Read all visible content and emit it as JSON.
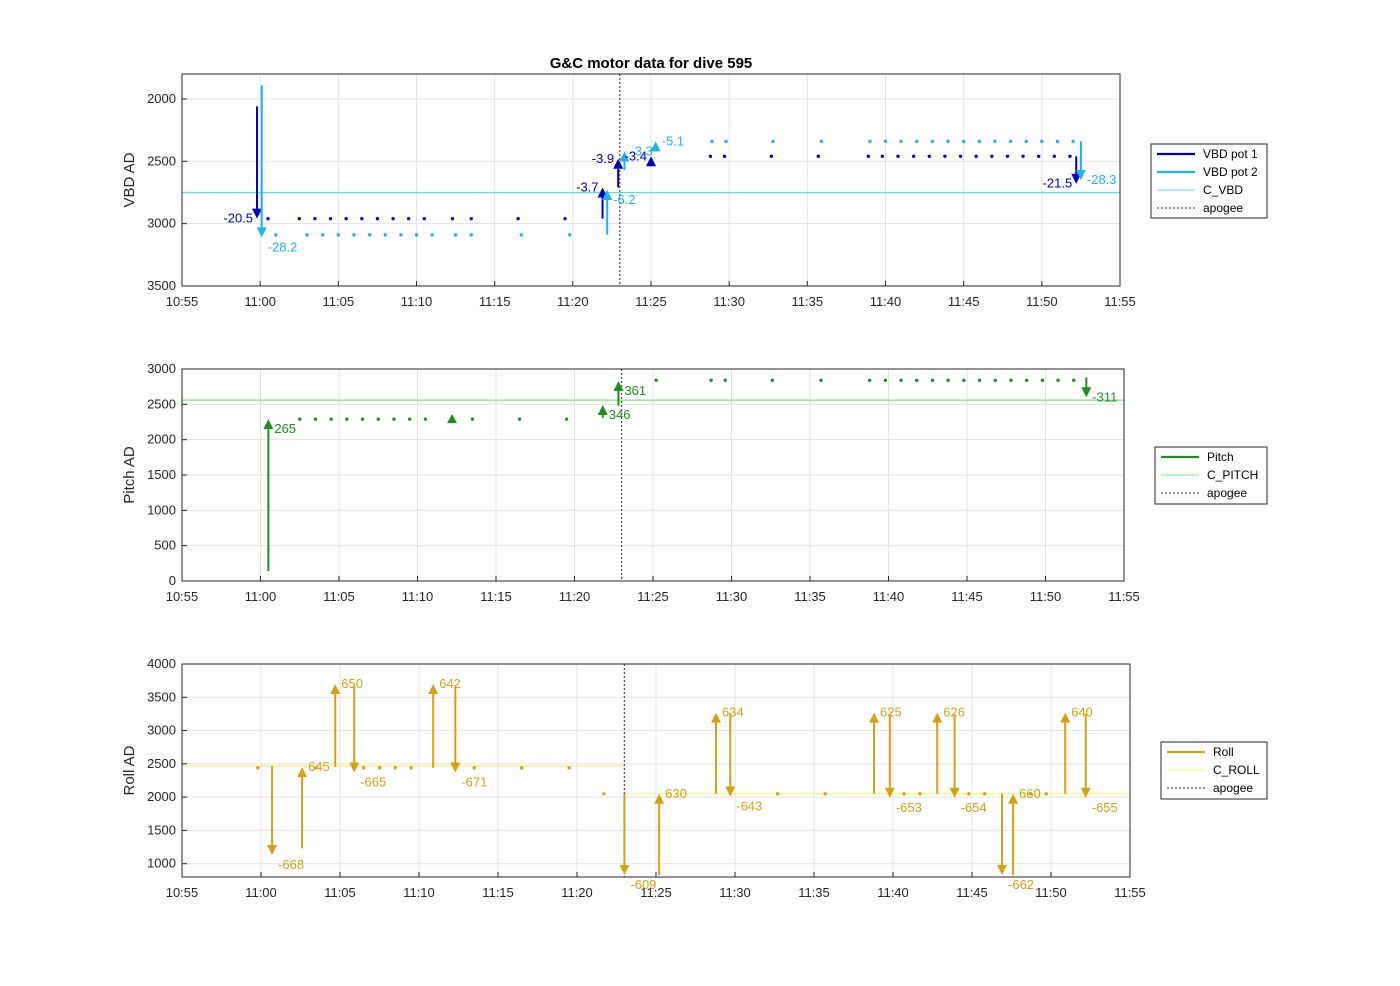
{
  "chart_data": {
    "type": "line",
    "title": "G&C motor data for dive 595",
    "xlim": [
      "10:55",
      "11:55"
    ],
    "x_ticks": [
      "10:55",
      "11:00",
      "11:05",
      "11:10",
      "11:15",
      "11:20",
      "11:25",
      "11:30",
      "11:35",
      "11:40",
      "11:45",
      "11:50",
      "11:55"
    ],
    "apogee": "11:23.0",
    "panels": [
      {
        "id": "vbd",
        "ylabel": "VBD AD",
        "ylim": [
          1800,
          3500
        ],
        "y_reversed": true,
        "y_ticks": [
          2000,
          2500,
          3000,
          3500
        ],
        "legend": [
          {
            "label": "VBD pot 1",
            "color": "#0000b3",
            "style": "solid-thick"
          },
          {
            "label": "VBD pot 2",
            "color": "#1fb4e8",
            "style": "solid-thick"
          },
          {
            "label": "C_VBD",
            "color": "#5fd8e6",
            "style": "solid-thin"
          },
          {
            "label": "apogee",
            "color": "#555555",
            "style": "dotted"
          }
        ],
        "hlines": [
          {
            "y": 2750,
            "color": "#5fd8e6"
          }
        ],
        "dot_series": [
          {
            "name": "VBD pot 1",
            "color": "#0000b3",
            "y": 2960,
            "x": [
              "11:00.5",
              "11:02.5",
              "11:03.5",
              "11:04.5",
              "11:05.5",
              "11:06.5",
              "11:07.5",
              "11:08.5",
              "11:09.5",
              "11:10.5",
              "11:12.3",
              "11:13.5",
              "11:16.5",
              "11:19.5"
            ]
          },
          {
            "name": "VBD pot 1",
            "color": "#0000b3",
            "y": 2460,
            "x": [
              "11:28.8",
              "11:29.7",
              "11:32.7",
              "11:35.7",
              "11:38.9",
              "11:39.8",
              "11:40.8",
              "11:41.8",
              "11:42.8",
              "11:43.8",
              "11:44.8",
              "11:45.8",
              "11:46.8",
              "11:47.8",
              "11:48.8",
              "11:49.8",
              "11:50.8",
              "11:51.8"
            ]
          },
          {
            "name": "VBD pot 2",
            "color": "#1fb4e8",
            "y": 3090,
            "x": [
              "11:01",
              "11:03",
              "11:04",
              "11:05",
              "11:06",
              "11:07",
              "11:08",
              "11:09",
              "11:10",
              "11:11",
              "11:12.5",
              "11:13.5",
              "11:16.7",
              "11:19.8"
            ]
          },
          {
            "name": "VBD pot 2",
            "color": "#1fb4e8",
            "y": 2340,
            "x": [
              "11:28.9",
              "11:29.8",
              "11:32.8",
              "11:35.9",
              "11:39.0",
              "11:40.0",
              "11:41.0",
              "11:42.0",
              "11:43.0",
              "11:44.0",
              "11:45.0",
              "11:46.0",
              "11:47.0",
              "11:48.0",
              "11:49.0",
              "11:50.0",
              "11:51.0",
              "11:52.0"
            ]
          }
        ],
        "arrows": [
          {
            "x": "10:59.8",
            "y0": 2060,
            "y1": 2960,
            "color": "#0000b3",
            "label": "-20.5",
            "label_side": "left"
          },
          {
            "x": "11:00.1",
            "y0": 1890,
            "y1": 3110,
            "color": "#1fb4e8",
            "label": "-28.2",
            "label_side": "below-right"
          },
          {
            "x": "11:21.9",
            "y0": 2960,
            "y1": 2710,
            "color": "#0000b3",
            "label": "-3.7",
            "label_side": "left"
          },
          {
            "x": "11:22.2",
            "y0": 3090,
            "y1": 2730,
            "color": "#1fb4e8",
            "label": "-6.2",
            "label_side": "below-right"
          },
          {
            "x": "11:22.9",
            "y0": 2710,
            "y1": 2480,
            "color": "#0000b3",
            "label": "-3.9",
            "label_side": "left"
          },
          {
            "x": "11:23.3",
            "y0": 2570,
            "y1": 2420,
            "color": "#1fb4e8",
            "label": "-3.3",
            "label_side": "right"
          },
          {
            "x": "11:25.0",
            "y0": 2510,
            "y1": 2460,
            "color": "#0000b3",
            "label": "-3.4",
            "label_side": "left"
          },
          {
            "x": "11:25.3",
            "y0": 2410,
            "y1": 2340,
            "color": "#1fb4e8",
            "label": "-5.1",
            "label_side": "right"
          },
          {
            "x": "11:52.2",
            "y0": 2460,
            "y1": 2680,
            "color": "#0000b3",
            "label": "-21.5",
            "label_side": "left"
          },
          {
            "x": "11:52.5",
            "y0": 2340,
            "y1": 2650,
            "color": "#1fb4e8",
            "label": "-28.3",
            "label_side": "right"
          }
        ]
      },
      {
        "id": "pitch",
        "ylabel": "Pitch AD",
        "ylim": [
          0,
          3000
        ],
        "y_reversed": false,
        "y_ticks": [
          0,
          500,
          1000,
          1500,
          2000,
          2500,
          3000
        ],
        "legend": [
          {
            "label": "Pitch",
            "color": "#228b22",
            "style": "solid-thick"
          },
          {
            "label": "C_PITCH",
            "color": "#7de37d",
            "style": "solid-thin"
          },
          {
            "label": "apogee",
            "color": "#555555",
            "style": "dotted"
          }
        ],
        "hlines": [
          {
            "y": 2560,
            "color": "#7de37d"
          }
        ],
        "dot_series": [
          {
            "name": "Pitch",
            "color": "#228b22",
            "y": 2290,
            "x": [
              "11:02.5",
              "11:03.5",
              "11:04.5",
              "11:05.5",
              "11:06.5",
              "11:07.5",
              "11:08.5",
              "11:09.5",
              "11:10.5",
              "11:13.5",
              "11:16.5",
              "11:19.5"
            ]
          },
          {
            "name": "Pitch",
            "color": "#228b22",
            "y": 2840,
            "x": [
              "11:25.2",
              "11:28.7",
              "11:29.6",
              "11:32.6",
              "11:35.7",
              "11:38.8",
              "11:39.8",
              "11:40.8",
              "11:41.8",
              "11:42.8",
              "11:43.8",
              "11:44.8",
              "11:45.8",
              "11:46.8",
              "11:47.8",
              "11:48.8",
              "11:49.8",
              "11:50.8",
              "11:51.8"
            ]
          }
        ],
        "arrows": [
          {
            "x": "11:00.5",
            "y0": 140,
            "y1": 2290,
            "color": "#228b22",
            "label": "265",
            "label_side": "below-right"
          },
          {
            "x": "11:12.2",
            "y0": 2290,
            "y1": 2290,
            "color": "#228b22",
            "label": "",
            "label_side": "none"
          },
          {
            "x": "11:21.8",
            "y0": 2310,
            "y1": 2490,
            "color": "#228b22",
            "label": "346",
            "label_side": "below-right"
          },
          {
            "x": "11:22.8",
            "y0": 2480,
            "y1": 2830,
            "color": "#228b22",
            "label": "361",
            "label_side": "below-right"
          },
          {
            "x": "11:52.6",
            "y0": 2880,
            "y1": 2600,
            "color": "#228b22",
            "label": "-311",
            "label_side": "right"
          }
        ]
      },
      {
        "id": "roll",
        "ylabel": "Roll AD",
        "ylim": [
          800,
          4000
        ],
        "y_reversed": false,
        "y_ticks": [
          1000,
          1500,
          2000,
          2500,
          3000,
          3500,
          4000
        ],
        "legend": [
          {
            "label": "Roll",
            "color": "#d4a017",
            "style": "solid-thick"
          },
          {
            "label": "C_ROLL",
            "color": "#f5ef7a",
            "style": "solid-thin"
          },
          {
            "label": "apogee",
            "color": "#555555",
            "style": "dotted"
          }
        ],
        "hlines_segments": [
          {
            "x0": "10:55",
            "x1": "11:23.0",
            "y": 2470,
            "color": "#f5ef7a"
          },
          {
            "x0": "11:23.0",
            "x1": "11:55",
            "y": 2050,
            "color": "#f5ef7a"
          }
        ],
        "dot_series": [
          {
            "name": "Roll",
            "color": "#d4a017",
            "y": 2440,
            "x": [
              "10:59.8",
              "11:03.5",
              "11:06.5",
              "11:07.5",
              "11:08.5",
              "11:09.5",
              "11:13.5",
              "11:16.5",
              "11:19.5"
            ]
          },
          {
            "name": "Roll",
            "color": "#d4a017",
            "y": 2050,
            "x": [
              "11:21.7",
              "11:32.7",
              "11:35.7",
              "11:40.7",
              "11:41.7",
              "11:44.8",
              "11:45.8",
              "11:48.7",
              "11:49.7"
            ]
          }
        ],
        "arrows": [
          {
            "x": "11:00.7",
            "y0": 2470,
            "y1": 1130,
            "color": "#d4a017",
            "label": "-668",
            "label_side": "below-right"
          },
          {
            "x": "11:02.6",
            "y0": 1230,
            "y1": 2450,
            "color": "#d4a017",
            "label": "645",
            "label_side": "right"
          },
          {
            "x": "11:04.7",
            "y0": 2450,
            "y1": 3700,
            "color": "#d4a017",
            "label": "650",
            "label_side": "right"
          },
          {
            "x": "11:05.9",
            "y0": 3680,
            "y1": 2370,
            "color": "#d4a017",
            "label": "-665",
            "label_side": "below-right"
          },
          {
            "x": "11:10.9",
            "y0": 2440,
            "y1": 3700,
            "color": "#d4a017",
            "label": "642",
            "label_side": "right"
          },
          {
            "x": "11:12.3",
            "y0": 3680,
            "y1": 2370,
            "color": "#d4a017",
            "label": "-671",
            "label_side": "below-right"
          },
          {
            "x": "11:23.0",
            "y0": 2050,
            "y1": 830,
            "color": "#d4a017",
            "label": "-609",
            "label_side": "below-right"
          },
          {
            "x": "11:25.2",
            "y0": 830,
            "y1": 2050,
            "color": "#d4a017",
            "label": "630",
            "label_side": "right"
          },
          {
            "x": "11:28.8",
            "y0": 2050,
            "y1": 3270,
            "color": "#d4a017",
            "label": "634",
            "label_side": "right"
          },
          {
            "x": "11:29.7",
            "y0": 3270,
            "y1": 2010,
            "color": "#d4a017",
            "label": "-643",
            "label_side": "below-right"
          },
          {
            "x": "11:38.8",
            "y0": 2050,
            "y1": 3270,
            "color": "#d4a017",
            "label": "625",
            "label_side": "right"
          },
          {
            "x": "11:39.8",
            "y0": 3250,
            "y1": 1990,
            "color": "#d4a017",
            "label": "-653",
            "label_side": "below-right"
          },
          {
            "x": "11:42.8",
            "y0": 2050,
            "y1": 3270,
            "color": "#d4a017",
            "label": "626",
            "label_side": "right"
          },
          {
            "x": "11:43.9",
            "y0": 3250,
            "y1": 1990,
            "color": "#d4a017",
            "label": "-654",
            "label_side": "below-right"
          },
          {
            "x": "11:46.9",
            "y0": 2050,
            "y1": 830,
            "color": "#d4a017",
            "label": "-662",
            "label_side": "below-right"
          },
          {
            "x": "11:47.6",
            "y0": 830,
            "y1": 2050,
            "color": "#d4a017",
            "label": "660",
            "label_side": "right"
          },
          {
            "x": "11:50.9",
            "y0": 2050,
            "y1": 3270,
            "color": "#d4a017",
            "label": "640",
            "label_side": "right"
          },
          {
            "x": "11:52.2",
            "y0": 3250,
            "y1": 1990,
            "color": "#d4a017",
            "label": "-655",
            "label_side": "below-right"
          }
        ]
      }
    ]
  }
}
